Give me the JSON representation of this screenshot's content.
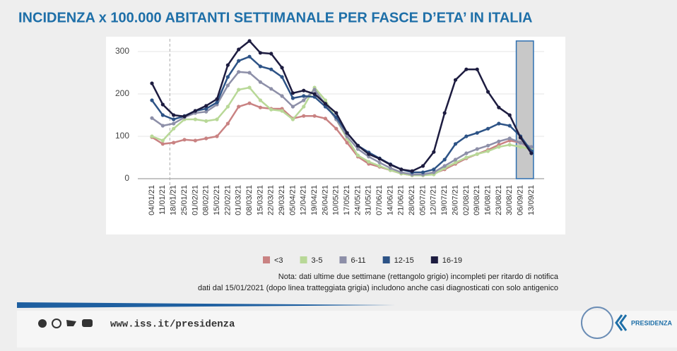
{
  "chart_data": {
    "type": "line",
    "title": "INCIDENZA x 100.000 ABITANTI SETTIMANALE PER FASCE D’ETA’ IN ITALIA",
    "categories": [
      "04/01/21",
      "11/01/21",
      "18/01/21",
      "25/01/21",
      "01/02/21",
      "08/02/21",
      "15/02/21",
      "22/02/21",
      "01/03/21",
      "08/03/21",
      "15/03/21",
      "22/03/21",
      "29/03/21",
      "05/04/21",
      "12/04/21",
      "19/04/21",
      "26/04/21",
      "10/05/21",
      "17/05/21",
      "24/05/21",
      "31/05/21",
      "07/06/21",
      "14/06/21",
      "21/06/21",
      "28/06/21",
      "05/07/21",
      "12/07/21",
      "19/07/21",
      "26/07/21",
      "02/08/21",
      "09/08/21",
      "16/08/21",
      "23/08/21",
      "30/08/21",
      "06/09/21",
      "13/09/21"
    ],
    "series": [
      {
        "name": "<3",
        "color": "#c98282",
        "values": [
          98,
          82,
          85,
          92,
          90,
          95,
          100,
          130,
          170,
          178,
          168,
          165,
          165,
          142,
          148,
          148,
          142,
          118,
          85,
          52,
          35,
          28,
          20,
          12,
          8,
          8,
          12,
          22,
          35,
          48,
          58,
          68,
          80,
          90,
          85,
          72
        ]
      },
      {
        "name": "3-5",
        "color": "#b8d897",
        "values": [
          100,
          90,
          118,
          140,
          140,
          136,
          140,
          170,
          210,
          215,
          185,
          163,
          160,
          140,
          170,
          215,
          185,
          140,
          95,
          55,
          40,
          30,
          20,
          12,
          8,
          8,
          10,
          25,
          38,
          50,
          58,
          65,
          75,
          80,
          75,
          70
        ]
      },
      {
        "name": "6-11",
        "color": "#8d8fa8",
        "values": [
          143,
          125,
          130,
          145,
          155,
          158,
          175,
          220,
          252,
          250,
          228,
          212,
          195,
          170,
          185,
          210,
          175,
          140,
          100,
          70,
          52,
          38,
          25,
          15,
          10,
          10,
          15,
          30,
          45,
          60,
          70,
          78,
          88,
          95,
          85,
          75
        ]
      },
      {
        "name": "12-15",
        "color": "#2d5386",
        "values": [
          185,
          150,
          140,
          148,
          160,
          165,
          180,
          240,
          278,
          288,
          265,
          258,
          240,
          190,
          195,
          193,
          170,
          145,
          108,
          78,
          62,
          48,
          34,
          22,
          15,
          15,
          22,
          45,
          82,
          100,
          108,
          118,
          130,
          125,
          100,
          65
        ]
      },
      {
        "name": "16-19",
        "color": "#1d1c40",
        "values": [
          225,
          175,
          150,
          147,
          160,
          172,
          188,
          268,
          305,
          325,
          297,
          295,
          262,
          202,
          208,
          200,
          177,
          155,
          108,
          78,
          58,
          47,
          33,
          22,
          18,
          30,
          63,
          155,
          233,
          258,
          258,
          205,
          168,
          150,
          97,
          60
        ]
      }
    ],
    "ylim": [
      0,
      330
    ],
    "yticks": [
      0,
      100,
      200,
      300
    ],
    "grid": true,
    "notes": [
      "Nota: dati ultime due settimane (rettangolo grigio) incompleti per ritardo di notifica",
      "dati dal 15/01/2021 (dopo linea tratteggiata grigia) includono anche casi diagnosticati con solo antigenico"
    ]
  },
  "footer": {
    "url": "www.iss.it/presidenza",
    "brand": "PRESIDENZA"
  }
}
